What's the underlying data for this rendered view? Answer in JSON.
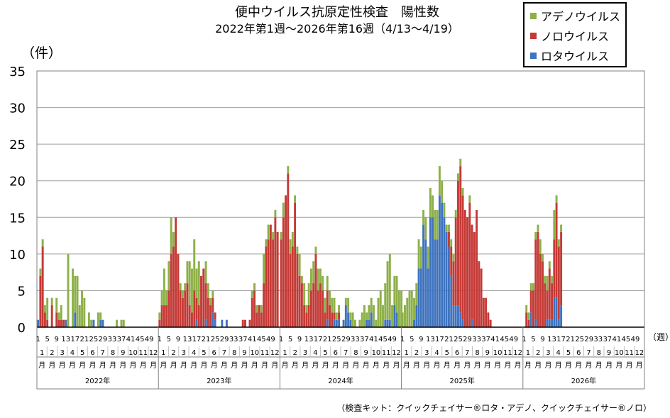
{
  "title": {
    "line1": "便中ウイルス抗原定性検査　陽性数",
    "line2": "2022年第1週～2026年第16週（4/13～4/19）"
  },
  "y_unit_label": "（件）",
  "x_unit_label": "（週）",
  "footnote": "（検査キット：クイックチェイサー®ロタ・アデノ、クイックチェイサー®ノロ）",
  "legend": [
    {
      "name": "アデノウイルス",
      "color": "#8db048"
    },
    {
      "name": "ノロウイルス",
      "color": "#c43a36"
    },
    {
      "name": "ロタウイルス",
      "color": "#3e73bf"
    }
  ],
  "chart_data": {
    "type": "bar",
    "stacked": true,
    "title": "便中ウイルス抗原定性検査　陽性数",
    "subtitle": "2022年第1週～2026年第16週（4/13～4/19）",
    "ylabel": "（件）",
    "xlabel": "（週）",
    "ylim": [
      0,
      35
    ],
    "yticks": [
      0,
      5,
      10,
      15,
      20,
      25,
      30,
      35
    ],
    "grid": true,
    "legend_position": "top-right",
    "years": [
      "2022年",
      "2023年",
      "2024年",
      "2025年",
      "2026年"
    ],
    "week_tick_labels": [
      "1",
      "5",
      "9",
      "13",
      "17",
      "21",
      "25",
      "29",
      "33",
      "37",
      "41",
      "45",
      "49"
    ],
    "month_labels": [
      "1月",
      "2月",
      "3月",
      "4月",
      "5月",
      "6月",
      "7月",
      "8月",
      "9月",
      "10月",
      "11月",
      "12月"
    ],
    "series": [
      {
        "name": "ロタウイルス",
        "color": "#3e73bf",
        "values": [
          [
            1,
            0,
            0,
            0,
            0,
            0,
            0,
            0,
            0,
            0,
            0,
            0,
            1,
            0,
            0,
            0,
            2,
            0,
            0,
            0,
            0,
            0,
            0,
            0,
            1,
            0,
            0,
            1,
            1,
            0,
            0,
            0,
            0,
            0,
            0,
            0,
            0,
            0,
            0,
            0,
            0,
            0,
            0,
            0,
            0,
            0,
            0,
            0,
            0,
            0,
            0,
            0,
            0
          ],
          [
            0,
            0,
            0,
            0,
            0,
            0,
            0,
            0,
            0,
            0,
            0,
            0,
            0,
            0,
            0,
            0,
            1,
            0,
            0,
            0,
            1,
            0,
            0,
            2,
            1,
            0,
            0,
            1,
            0,
            1,
            0,
            0,
            0,
            0,
            0,
            0,
            0,
            0,
            0,
            0,
            0,
            0,
            0,
            0,
            0,
            0,
            0,
            0,
            0,
            0,
            0,
            0
          ],
          [
            0,
            0,
            0,
            0,
            0,
            0,
            0,
            0,
            0,
            0,
            0,
            0,
            0,
            0,
            0,
            0,
            0,
            0,
            0,
            0,
            1,
            0,
            0,
            1,
            1,
            1,
            0,
            1,
            3,
            2,
            1,
            0,
            0,
            0,
            0,
            0,
            0,
            1,
            1,
            2,
            0,
            0,
            0,
            0,
            0,
            1,
            1,
            1,
            0,
            3,
            2,
            0,
            0
          ],
          [
            0,
            0,
            0,
            0,
            0,
            1,
            3,
            8,
            8,
            14,
            12,
            8,
            15,
            15,
            12,
            12,
            18,
            17,
            15,
            13,
            11,
            7,
            3,
            3,
            3,
            2,
            1,
            0,
            0,
            0,
            1,
            0,
            0,
            0,
            0,
            0,
            0,
            0,
            0,
            0,
            0,
            0,
            0,
            0,
            0,
            0,
            0,
            0,
            0,
            0,
            0,
            0,
            0
          ],
          [
            0,
            0,
            0,
            2,
            0,
            1,
            0,
            0,
            0,
            0,
            1,
            1,
            1,
            4,
            4,
            1,
            3
          ]
        ]
      },
      {
        "name": "ノロウイルス",
        "color": "#c43a36",
        "values": [
          [
            0,
            7,
            11,
            2,
            1,
            0,
            3,
            0,
            2,
            1,
            1,
            1,
            0,
            0,
            0,
            0,
            0,
            0,
            0,
            0,
            0,
            0,
            0,
            0,
            0,
            0,
            0,
            0,
            0,
            0,
            0,
            0,
            0,
            0,
            0,
            0,
            0,
            0,
            0,
            0,
            0,
            0,
            0,
            0,
            0,
            0,
            0,
            0,
            0,
            0,
            0,
            0,
            0
          ],
          [
            1,
            3,
            3,
            3,
            5,
            10,
            11,
            15,
            10,
            5,
            4,
            5,
            6,
            3,
            2,
            5,
            3,
            3,
            7,
            8,
            5,
            4,
            3,
            2,
            1,
            0,
            0,
            0,
            0,
            0,
            0,
            0,
            0,
            0,
            0,
            0,
            1,
            1,
            0,
            1,
            4,
            5,
            2,
            3,
            2,
            6,
            11,
            12,
            14,
            12,
            15,
            13,
            12
          ],
          [
            12,
            15,
            18,
            21,
            10,
            11,
            17,
            10,
            7,
            6,
            3,
            2,
            3,
            5,
            6,
            10,
            5,
            6,
            5,
            2,
            4,
            3,
            2,
            1,
            0,
            1,
            0,
            0,
            0,
            0,
            0,
            0,
            0,
            0,
            0,
            0,
            0,
            0,
            0,
            0,
            0,
            0,
            0,
            0,
            0,
            0,
            0,
            0,
            0,
            0,
            0,
            0,
            0
          ],
          [
            0,
            0,
            0,
            0,
            0,
            0,
            0,
            0,
            0,
            0,
            0,
            0,
            0,
            0,
            0,
            0,
            0,
            0,
            0,
            0,
            2,
            4,
            6,
            12,
            17,
            20,
            17,
            16,
            15,
            17,
            13,
            13,
            16,
            9,
            8,
            4,
            4,
            2,
            1,
            0,
            0,
            0,
            0,
            0,
            0,
            0,
            0,
            0,
            0,
            0,
            0,
            0,
            0
          ],
          [
            0,
            2,
            1,
            3,
            5,
            11,
            13,
            10,
            9,
            6,
            4,
            7,
            5,
            8,
            13,
            10,
            10
          ]
        ]
      },
      {
        "name": "アデノウイルス",
        "color": "#8db048",
        "values": [
          [
            0,
            1,
            1,
            1,
            3,
            0,
            1,
            0,
            2,
            1,
            2,
            0,
            0,
            10,
            0,
            8,
            5,
            7,
            3,
            5,
            4,
            0,
            2,
            1,
            0,
            0,
            2,
            1,
            0,
            0,
            0,
            0,
            0,
            0,
            1,
            0,
            1,
            1,
            0,
            0,
            0,
            0,
            0,
            0,
            0,
            0,
            0,
            0,
            0,
            0,
            0,
            0,
            0
          ],
          [
            1,
            2,
            5,
            2,
            4,
            5,
            2,
            0,
            0,
            1,
            1,
            1,
            3,
            6,
            6,
            7,
            4,
            6,
            0,
            0,
            3,
            2,
            1,
            1,
            0,
            0,
            0,
            0,
            0,
            0,
            0,
            0,
            0,
            0,
            0,
            0,
            0,
            0,
            0,
            0,
            1,
            1,
            1,
            0,
            1,
            4,
            1,
            2,
            0,
            1,
            1,
            0,
            2
          ],
          [
            1,
            2,
            0,
            1,
            2,
            2,
            1,
            1,
            3,
            1,
            3,
            1,
            3,
            3,
            3,
            1,
            3,
            2,
            2,
            2,
            2,
            2,
            2,
            2,
            1,
            1,
            0,
            0,
            1,
            2,
            1,
            2,
            1,
            0,
            1,
            2,
            3,
            1,
            2,
            2,
            3,
            1,
            4,
            5,
            3,
            5,
            8,
            9,
            3,
            4,
            5,
            5,
            5
          ],
          [
            2,
            3,
            4,
            5,
            5,
            3,
            3,
            4,
            3,
            2,
            3,
            3,
            4,
            3,
            4,
            4,
            4,
            3,
            2,
            1,
            1,
            1,
            1,
            1,
            1,
            1,
            1,
            0,
            0,
            1,
            0,
            0,
            0,
            0,
            0,
            0,
            0,
            0,
            0,
            0,
            0,
            0,
            0,
            0,
            0,
            0,
            0,
            0,
            0,
            0,
            0,
            0,
            0
          ],
          [
            0,
            1,
            1,
            1,
            1,
            1,
            1,
            2,
            1,
            1,
            2,
            1,
            1,
            4,
            1,
            1,
            1
          ]
        ]
      }
    ]
  }
}
